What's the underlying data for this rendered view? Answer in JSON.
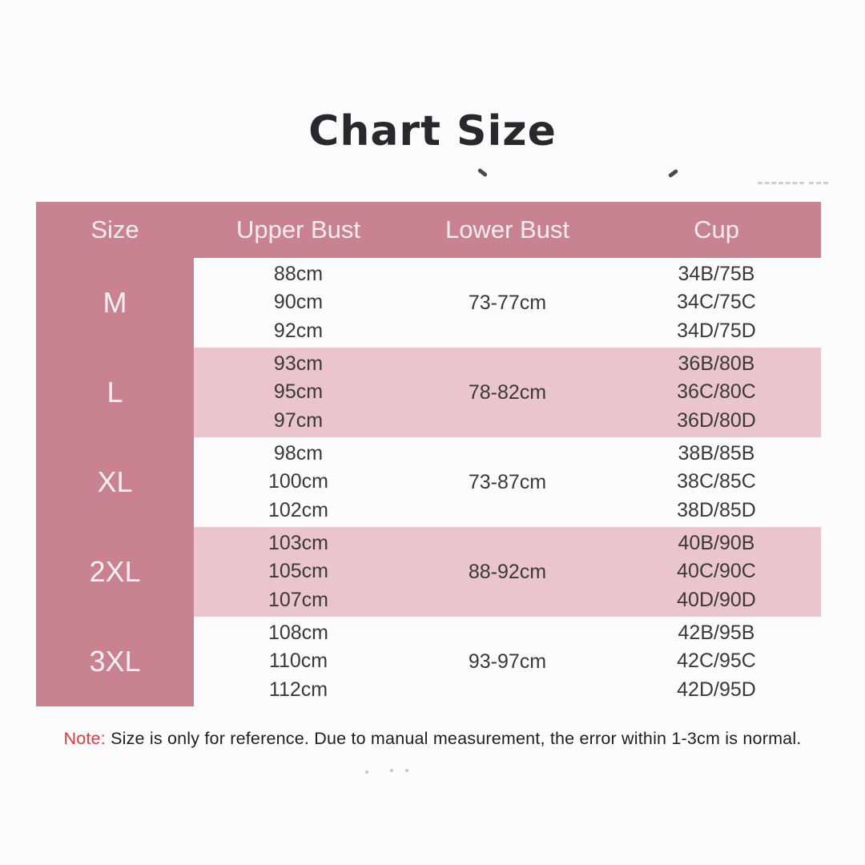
{
  "page_title": "Chart Size",
  "colors": {
    "header_bg": "#c9828f",
    "size_column_bg": "#c9828f",
    "shaded_row_bg": "#eac5cd",
    "plain_row_bg": "#ffffff",
    "header_text": "#fdedef",
    "body_text": "#39393b",
    "title_text": "#29292c",
    "note_label_red": "#e13b3c"
  },
  "chart_data": {
    "type": "table",
    "title": "Chart Size",
    "columns": [
      "Size",
      "Upper Bust",
      "Lower Bust",
      "Cup"
    ],
    "groups": [
      {
        "size": "M",
        "upper_bust": [
          "88cm",
          "90cm",
          "92cm"
        ],
        "lower_bust": "73-77cm",
        "cup": [
          "34B/75B",
          "34C/75C",
          "34D/75D"
        ],
        "shaded": false
      },
      {
        "size": "L",
        "upper_bust": [
          "93cm",
          "95cm",
          "97cm"
        ],
        "lower_bust": "78-82cm",
        "cup": [
          "36B/80B",
          "36C/80C",
          "36D/80D"
        ],
        "shaded": true
      },
      {
        "size": "XL",
        "upper_bust": [
          "98cm",
          "100cm",
          "102cm"
        ],
        "lower_bust": "73-87cm",
        "cup": [
          "38B/85B",
          "38C/85C",
          "38D/85D"
        ],
        "shaded": false
      },
      {
        "size": "2XL",
        "upper_bust": [
          "103cm",
          "105cm",
          "107cm"
        ],
        "lower_bust": "88-92cm",
        "cup": [
          "40B/90B",
          "40C/90C",
          "40D/90D"
        ],
        "shaded": true
      },
      {
        "size": "3XL",
        "upper_bust": [
          "108cm",
          "110cm",
          "112cm"
        ],
        "lower_bust": "93-97cm",
        "cup": [
          "42B/95B",
          "42C/95C",
          "42D/95D"
        ],
        "shaded": false
      }
    ],
    "note": "Note: Size is only for reference. Due to manual measurement, the error within 1-3cm is normal."
  },
  "note": {
    "label": "Note:",
    "text": " Size is only for reference. Due to manual measurement, the error within 1-3cm is normal."
  }
}
